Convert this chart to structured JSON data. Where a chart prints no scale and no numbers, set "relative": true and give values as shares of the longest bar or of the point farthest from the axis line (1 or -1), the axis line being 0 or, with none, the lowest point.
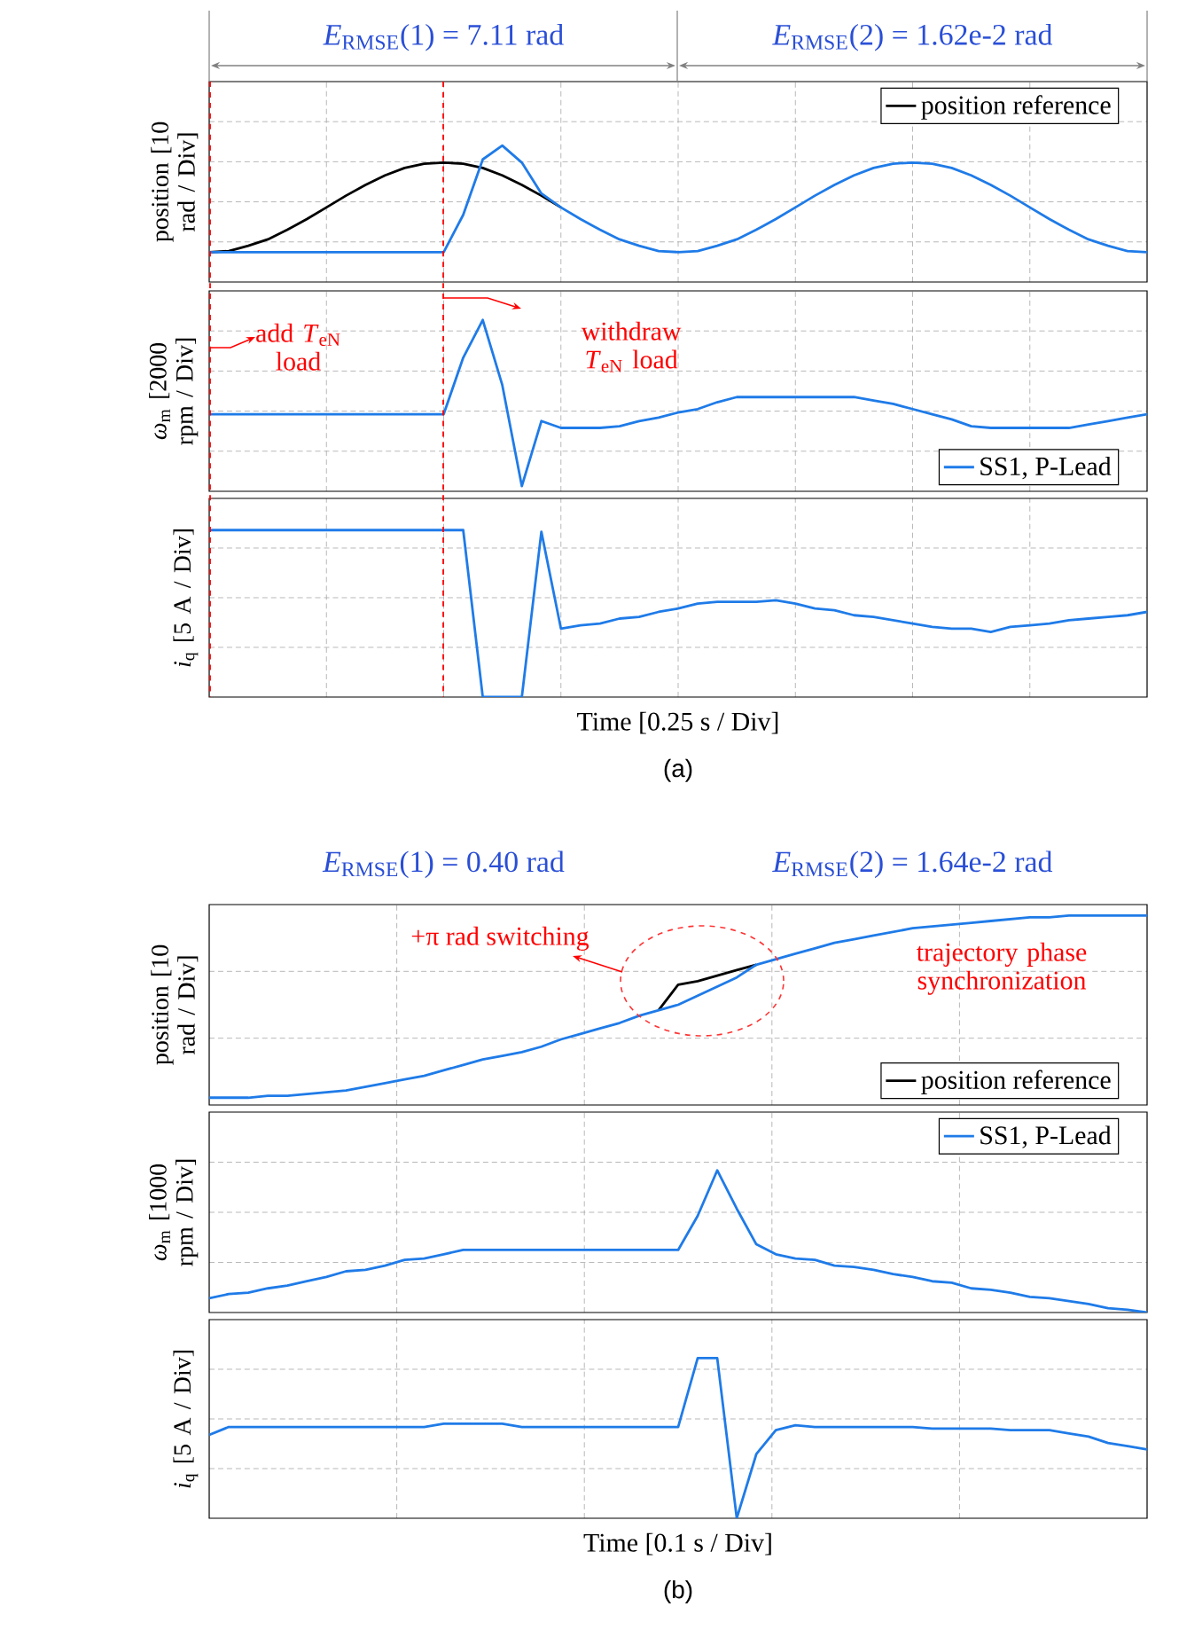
{
  "chart_data": [
    {
      "type": "line",
      "relative": true,
      "tick_labels": false,
      "grid": true,
      "legend": "top right",
      "ylabel": "position [10 rad / Div]",
      "annotations": [
        "*E*$_{RMSE}$(1) = 7.11 rad",
        "*E*$_{RMSE}$(2) = 1.62e-2 rad"
      ],
      "categories": [
        null,
        null,
        null,
        null,
        null,
        null,
        null,
        null,
        null,
        null,
        null,
        null,
        null,
        null,
        null,
        null,
        null,
        null,
        null,
        null,
        null,
        null,
        null,
        null,
        null,
        null,
        null,
        null,
        null,
        null,
        null,
        null,
        null,
        null,
        null,
        null,
        null,
        null,
        null,
        null,
        null,
        null,
        null,
        null,
        null,
        null,
        null,
        null,
        null
      ],
      "series": [
        {
          "name": "position reference",
          "color": "#000000",
          "values": [
            0,
            0.01,
            0.06,
            0.12,
            0.21,
            0.31,
            0.42,
            0.53,
            0.63,
            0.72,
            0.79,
            0.83,
            0.84,
            0.83,
            0.79,
            0.72,
            0.63,
            0.53,
            0.42,
            null,
            null,
            null,
            null,
            null,
            null,
            null,
            null,
            null,
            null,
            null,
            null,
            null,
            null,
            null,
            null,
            null,
            null,
            null,
            null,
            null,
            null,
            null,
            null,
            null,
            null,
            null,
            null,
            null,
            null
          ]
        },
        {
          "color": "#1f7be8",
          "values": [
            0,
            0,
            0,
            0,
            0,
            0,
            0,
            0,
            0,
            0,
            0,
            0,
            0,
            0.35,
            0.87,
            1.0,
            0.84,
            0.55,
            0.42,
            0.31,
            0.21,
            0.12,
            0.06,
            0.01,
            0,
            0.01,
            0.06,
            0.12,
            0.21,
            0.31,
            0.42,
            0.53,
            0.63,
            0.72,
            0.79,
            0.83,
            0.84,
            0.83,
            0.79,
            0.72,
            0.63,
            0.53,
            0.42,
            0.31,
            0.21,
            0.12,
            0.06,
            0.01,
            0
          ]
        }
      ]
    },
    {
      "type": "line",
      "relative": true,
      "tick_labels": false,
      "grid": true,
      "legend": "bottom right",
      "ylabel": "*ω*$_{m}$ [2000 rpm / Div]",
      "annotations": [
        "add *T*$_{eN}$ load",
        "withdraw *T*$_{eN}$ load"
      ],
      "categories": [
        null,
        null,
        null,
        null,
        null,
        null,
        null,
        null,
        null,
        null,
        null,
        null,
        null,
        null,
        null,
        null,
        null,
        null,
        null,
        null,
        null,
        null,
        null,
        null,
        null,
        null,
        null,
        null,
        null,
        null,
        null,
        null,
        null,
        null,
        null,
        null,
        null,
        null,
        null,
        null,
        null,
        null,
        null,
        null,
        null,
        null,
        null,
        null,
        null
      ],
      "series": [
        {
          "name": "SS1, P-Lead",
          "color": "#1f7be8",
          "values": [
            0.45,
            0.45,
            0.45,
            0.45,
            0.45,
            0.45,
            0.45,
            0.45,
            0.45,
            0.45,
            0.45,
            0.45,
            0.45,
            0.78,
            1.0,
            0.62,
            0.03,
            0.41,
            0.37,
            0.37,
            0.37,
            0.38,
            0.41,
            0.43,
            0.46,
            0.48,
            0.52,
            0.55,
            0.55,
            0.55,
            0.55,
            0.55,
            0.55,
            0.55,
            0.53,
            0.51,
            0.48,
            0.45,
            0.42,
            0.38,
            0.37,
            0.37,
            0.37,
            0.37,
            0.37,
            0.39,
            0.41,
            0.43,
            0.45
          ]
        }
      ]
    },
    {
      "type": "line",
      "relative": true,
      "tick_labels": false,
      "grid": true,
      "ylabel": "*i*$_{q}$ [5 A / Div]",
      "xlabel": "Time [0.25 s / Div]",
      "annotations": [
        "(a)"
      ],
      "categories": [
        null,
        null,
        null,
        null,
        null,
        null,
        null,
        null,
        null,
        null,
        null,
        null,
        null,
        null,
        null,
        null,
        null,
        null,
        null,
        null,
        null,
        null,
        null,
        null,
        null,
        null,
        null,
        null,
        null,
        null,
        null,
        null,
        null,
        null,
        null,
        null,
        null,
        null,
        null,
        null,
        null,
        null,
        null,
        null,
        null,
        null,
        null,
        null,
        null
      ],
      "series": [
        {
          "color": "#1f7be8",
          "values": [
            1,
            1,
            1,
            1,
            1,
            1,
            1,
            1,
            1,
            1,
            1,
            1,
            1,
            1,
            0,
            0,
            0,
            0.99,
            0.41,
            0.43,
            0.44,
            0.47,
            0.48,
            0.51,
            0.53,
            0.56,
            0.57,
            0.57,
            0.57,
            0.58,
            0.56,
            0.53,
            0.52,
            0.49,
            0.48,
            0.46,
            0.44,
            0.42,
            0.41,
            0.41,
            0.39,
            0.42,
            0.43,
            0.44,
            0.46,
            0.47,
            0.48,
            0.49,
            0.51
          ]
        }
      ]
    },
    {
      "type": "line",
      "relative": true,
      "tick_labels": false,
      "grid": true,
      "legend": "bottom right",
      "ylabel": "position [10 rad / Div]",
      "annotations": [
        "*E*$_{RMSE}$(1) = 0.40 rad",
        "*E*$_{RMSE}$(2) = 1.64e-2 rad",
        "+π rad switching",
        "trajectory phase synchronization"
      ],
      "categories": [
        null,
        null,
        null,
        null,
        null,
        null,
        null,
        null,
        null,
        null,
        null,
        null,
        null,
        null,
        null,
        null,
        null,
        null,
        null,
        null,
        null,
        null,
        null,
        null,
        null,
        null,
        null,
        null,
        null,
        null,
        null,
        null,
        null,
        null,
        null,
        null,
        null,
        null,
        null,
        null,
        null,
        null,
        null,
        null,
        null,
        null,
        null,
        null,
        null
      ],
      "series": [
        {
          "name": "position reference",
          "color": "#000000",
          "values": [
            null,
            null,
            null,
            null,
            null,
            null,
            null,
            null,
            null,
            null,
            null,
            null,
            null,
            null,
            null,
            null,
            null,
            null,
            null,
            null,
            null,
            null,
            null,
            0.48,
            0.62,
            0.64,
            0.67,
            0.7,
            0.73,
            null,
            null,
            null,
            null,
            null,
            null,
            null,
            null,
            null,
            null,
            null,
            null,
            null,
            null,
            null,
            null,
            null,
            null,
            null,
            null
          ]
        },
        {
          "color": "#1f7be8",
          "values": [
            0,
            0,
            0,
            0.01,
            0.01,
            0.02,
            0.03,
            0.04,
            0.06,
            0.08,
            0.1,
            0.12,
            0.15,
            0.18,
            0.21,
            0.23,
            0.25,
            0.28,
            0.32,
            0.35,
            0.38,
            0.41,
            0.45,
            0.48,
            0.51,
            0.56,
            0.61,
            0.66,
            0.73,
            0.76,
            0.79,
            0.82,
            0.85,
            0.87,
            0.89,
            0.91,
            0.93,
            0.94,
            0.95,
            0.96,
            0.97,
            0.98,
            0.99,
            0.99,
            1,
            1,
            1,
            1,
            1
          ]
        }
      ]
    },
    {
      "type": "line",
      "relative": true,
      "tick_labels": false,
      "grid": true,
      "legend": "top right",
      "ylabel": "*ω*$_{m}$ [1000 rpm / Div]",
      "categories": [
        null,
        null,
        null,
        null,
        null,
        null,
        null,
        null,
        null,
        null,
        null,
        null,
        null,
        null,
        null,
        null,
        null,
        null,
        null,
        null,
        null,
        null,
        null,
        null,
        null,
        null,
        null,
        null,
        null,
        null,
        null,
        null,
        null,
        null,
        null,
        null,
        null,
        null,
        null,
        null,
        null,
        null,
        null,
        null,
        null,
        null,
        null,
        null,
        null
      ],
      "series": [
        {
          "name": "SS1, P-Lead",
          "color": "#1f7be8",
          "values": [
            0.1,
            0.13,
            0.14,
            0.17,
            0.19,
            0.22,
            0.25,
            0.29,
            0.3,
            0.33,
            0.37,
            0.38,
            0.41,
            0.44,
            0.44,
            0.44,
            0.44,
            0.44,
            0.44,
            0.44,
            0.44,
            0.44,
            0.44,
            0.44,
            0.44,
            0.68,
            1.0,
            0.73,
            0.48,
            0.41,
            0.38,
            0.37,
            0.33,
            0.32,
            0.3,
            0.27,
            0.25,
            0.22,
            0.21,
            0.17,
            0.16,
            0.14,
            0.11,
            0.1,
            0.08,
            0.06,
            0.03,
            0.02,
            0
          ]
        }
      ]
    },
    {
      "type": "line",
      "relative": true,
      "tick_labels": false,
      "grid": true,
      "ylabel": "*i*$_{q}$ [5 A / Div]",
      "xlabel": "Time [0.1 s / Div]",
      "annotations": [
        "(b)"
      ],
      "categories": [
        null,
        null,
        null,
        null,
        null,
        null,
        null,
        null,
        null,
        null,
        null,
        null,
        null,
        null,
        null,
        null,
        null,
        null,
        null,
        null,
        null,
        null,
        null,
        null,
        null,
        null,
        null,
        null,
        null,
        null,
        null,
        null,
        null,
        null,
        null,
        null,
        null,
        null,
        null,
        null,
        null,
        null,
        null,
        null,
        null,
        null,
        null,
        null,
        null
      ],
      "series": [
        {
          "color": "#1f7be8",
          "values": [
            0.52,
            0.57,
            0.57,
            0.57,
            0.57,
            0.57,
            0.57,
            0.57,
            0.57,
            0.57,
            0.57,
            0.57,
            0.59,
            0.59,
            0.59,
            0.59,
            0.57,
            0.57,
            0.57,
            0.57,
            0.57,
            0.57,
            0.57,
            0.57,
            0.57,
            1,
            1,
            0,
            0.4,
            0.55,
            0.58,
            0.57,
            0.57,
            0.57,
            0.57,
            0.57,
            0.57,
            0.56,
            0.56,
            0.56,
            0.56,
            0.55,
            0.55,
            0.55,
            0.53,
            0.51,
            0.47,
            0.45,
            0.43
          ]
        }
      ]
    }
  ]
}
